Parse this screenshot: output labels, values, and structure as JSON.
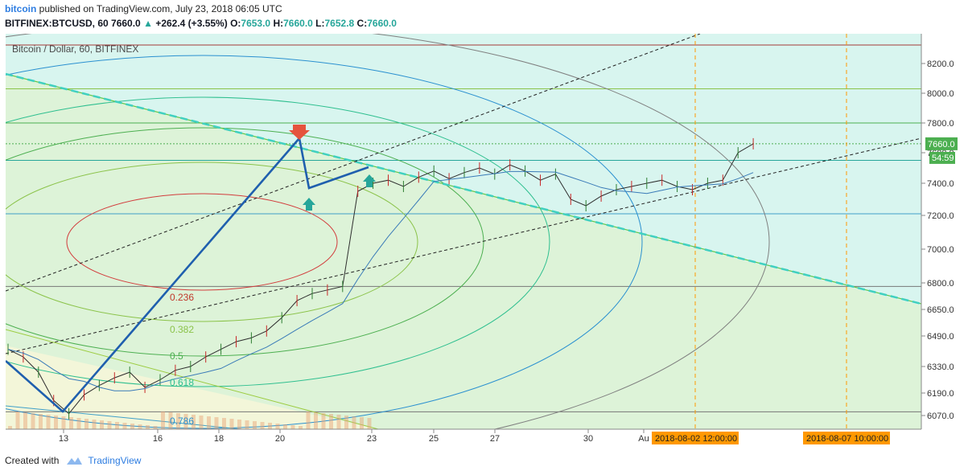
{
  "header": {
    "author": "bitcoin",
    "published_text": " published on TradingView.com, July 23, 2018 06:05 UTC",
    "symbol": "BITFINEX:BTCUSD, 60",
    "last": "7660.0",
    "change": "+262.4 (+3.55%)",
    "o_label": "O:",
    "o": "7653.0",
    "h_label": "H:",
    "h": "7660.0",
    "l_label": "L:",
    "l": "7652.8",
    "c_label": "C:",
    "c": "7660.0"
  },
  "footer": {
    "created_with": "Created with",
    "brand": "TradingView"
  },
  "colors": {
    "up_arrow": "#26a69a",
    "down_arrow": "#e5533d",
    "zigzag": "#1f5fae",
    "price_tag": "#4caf50",
    "date_tag": "#ff9800"
  },
  "chart_data": {
    "type": "line",
    "title": "Bitcoin / Dollar, 60, BITFINEX",
    "price_scale": {
      "labels": [
        "8200.0",
        "8000.0",
        "7800.0",
        "7600.0",
        "7400.0",
        "7200.0",
        "7000.0",
        "6800.0",
        "6650.0",
        "6490.0",
        "6330.0",
        "6190.0",
        "6070.0"
      ],
      "current_price": "7660.0",
      "countdown": "54:59"
    },
    "time_scale": {
      "labels": [
        "13",
        "16",
        "18",
        "20",
        "23",
        "25",
        "27",
        "30",
        "Au"
      ],
      "date_tags": [
        "2018-08-02 12:00:00",
        "2018-08-07 10:00:00"
      ]
    },
    "fib_levels": [
      "0.236",
      "0.382",
      "0.5",
      "0.618",
      "0.786"
    ],
    "horizontal_levels": [
      8310,
      8030,
      7800,
      7550,
      7210,
      6780,
      6090
    ],
    "price_points": [
      [
        0,
        6420
      ],
      [
        2,
        6380
      ],
      [
        4,
        6300
      ],
      [
        6,
        6150
      ],
      [
        8,
        6080
      ],
      [
        10,
        6180
      ],
      [
        12,
        6230
      ],
      [
        14,
        6270
      ],
      [
        16,
        6300
      ],
      [
        18,
        6220
      ],
      [
        20,
        6260
      ],
      [
        22,
        6310
      ],
      [
        24,
        6330
      ],
      [
        26,
        6380
      ],
      [
        28,
        6420
      ],
      [
        30,
        6460
      ],
      [
        32,
        6480
      ],
      [
        34,
        6520
      ],
      [
        36,
        6600
      ],
      [
        38,
        6700
      ],
      [
        40,
        6740
      ],
      [
        42,
        6760
      ],
      [
        44,
        6780
      ],
      [
        46,
        7350
      ],
      [
        48,
        7400
      ],
      [
        50,
        7420
      ],
      [
        52,
        7380
      ],
      [
        54,
        7440
      ],
      [
        56,
        7480
      ],
      [
        58,
        7430
      ],
      [
        60,
        7470
      ],
      [
        62,
        7500
      ],
      [
        64,
        7460
      ],
      [
        66,
        7520
      ],
      [
        68,
        7480
      ],
      [
        70,
        7420
      ],
      [
        72,
        7460
      ],
      [
        74,
        7300
      ],
      [
        76,
        7260
      ],
      [
        78,
        7320
      ],
      [
        80,
        7360
      ],
      [
        82,
        7380
      ],
      [
        84,
        7400
      ],
      [
        86,
        7420
      ],
      [
        88,
        7380
      ],
      [
        90,
        7360
      ],
      [
        92,
        7400
      ],
      [
        94,
        7420
      ],
      [
        96,
        7600
      ],
      [
        98,
        7660
      ]
    ]
  }
}
